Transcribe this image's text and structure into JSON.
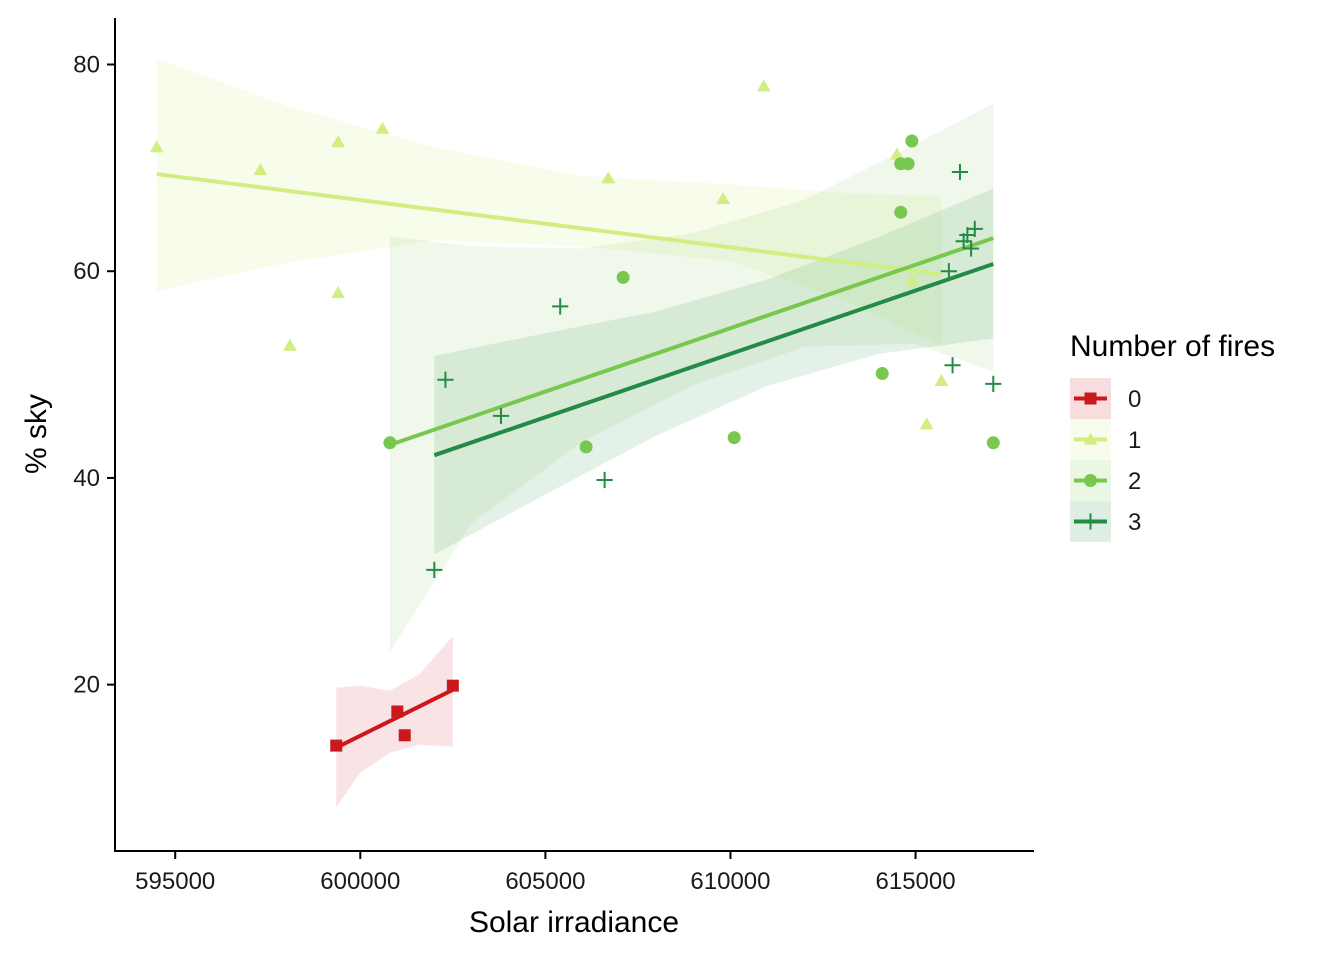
{
  "chart_data": {
    "type": "scatter",
    "title": "",
    "xlabel": "Solar irradiance",
    "ylabel": "% sky",
    "xlim": [
      593400,
      618200
    ],
    "ylim": [
      4,
      84.5
    ],
    "x_ticks": [
      595000,
      600000,
      605000,
      610000,
      615000
    ],
    "y_ticks": [
      20,
      40,
      60,
      80
    ],
    "grid": false,
    "legend": {
      "title": "Number of fires",
      "placement": "right"
    },
    "series": [
      {
        "name": "0",
        "color": "#cb181d",
        "marker": "square",
        "points": [
          [
            599350,
            14.1
          ],
          [
            601000,
            17.4
          ],
          [
            601200,
            15.1
          ],
          [
            602500,
            19.9
          ]
        ],
        "fit": {
          "x_range": [
            599350,
            602500
          ],
          "y_range": [
            13.9,
            19.5
          ]
        },
        "band": [
          [
            599350,
            8.1,
            19.7
          ],
          [
            600000,
            11.5,
            19.9
          ],
          [
            600800,
            13.4,
            19.4
          ],
          [
            601600,
            14.2,
            21.0
          ],
          [
            602500,
            14.0,
            24.7
          ]
        ]
      },
      {
        "name": "1",
        "color": "#d2ee82",
        "marker": "triangle",
        "points": [
          [
            594500,
            72.0
          ],
          [
            597300,
            69.8
          ],
          [
            598100,
            52.8
          ],
          [
            599400,
            72.5
          ],
          [
            599400,
            57.9
          ],
          [
            600600,
            73.8
          ],
          [
            606700,
            69.0
          ],
          [
            609800,
            67.0
          ],
          [
            610900,
            77.9
          ],
          [
            614500,
            71.3
          ],
          [
            614900,
            59.1
          ],
          [
            615300,
            45.2
          ],
          [
            615700,
            49.4
          ]
        ],
        "fit": {
          "x_range": [
            594500,
            615700
          ],
          "y_range": [
            69.4,
            59.7
          ]
        },
        "band": [
          [
            594500,
            58.1,
            80.6
          ],
          [
            598000,
            60.8,
            76.0
          ],
          [
            602000,
            63.0,
            72.0
          ],
          [
            606000,
            62.4,
            69.2
          ],
          [
            610000,
            61.0,
            68.4
          ],
          [
            613000,
            57.3,
            67.6
          ],
          [
            615700,
            52.8,
            67.2
          ]
        ]
      },
      {
        "name": "2",
        "color": "#78c850",
        "marker": "circle",
        "points": [
          [
            600800,
            43.4
          ],
          [
            606100,
            43.0
          ],
          [
            607100,
            59.4
          ],
          [
            610100,
            43.9
          ],
          [
            614100,
            50.1
          ],
          [
            614600,
            65.7
          ],
          [
            614600,
            70.4
          ],
          [
            614800,
            70.4
          ],
          [
            614900,
            72.6
          ],
          [
            617100,
            43.4
          ]
        ],
        "fit": {
          "x_range": [
            600800,
            617100
          ],
          "y_range": [
            43.2,
            63.2
          ]
        },
        "band": [
          [
            600800,
            23.2,
            63.4
          ],
          [
            603000,
            35.6,
            62.4
          ],
          [
            606000,
            43.5,
            62.2
          ],
          [
            609000,
            49.0,
            63.7
          ],
          [
            612000,
            52.7,
            66.9
          ],
          [
            615000,
            53.0,
            72.3
          ],
          [
            617100,
            50.3,
            76.2
          ]
        ]
      },
      {
        "name": "3",
        "color": "#238b45",
        "marker": "plus",
        "points": [
          [
            602000,
            31.1
          ],
          [
            602300,
            49.5
          ],
          [
            603800,
            46.0
          ],
          [
            605400,
            56.6
          ],
          [
            606600,
            39.8
          ],
          [
            615900,
            60.0
          ],
          [
            616000,
            50.9
          ],
          [
            616200,
            69.6
          ],
          [
            616300,
            62.9
          ],
          [
            616400,
            63.5
          ],
          [
            616500,
            62.2
          ],
          [
            616600,
            64.1
          ],
          [
            617100,
            49.1
          ]
        ],
        "fit": {
          "x_range": [
            602000,
            617100
          ],
          "y_range": [
            42.2,
            60.7
          ]
        },
        "band": [
          [
            602000,
            32.6,
            51.8
          ],
          [
            605000,
            38.4,
            54.0
          ],
          [
            608000,
            44.1,
            56.1
          ],
          [
            611000,
            48.9,
            59.2
          ],
          [
            614000,
            52.0,
            63.3
          ],
          [
            617100,
            53.5,
            68.0
          ]
        ]
      }
    ]
  }
}
